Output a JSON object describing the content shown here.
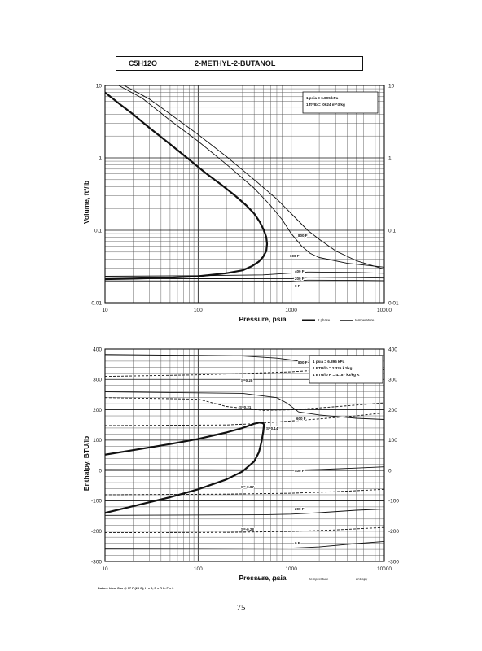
{
  "header": {
    "formula": "C5H12O",
    "compound": "2-METHYL-2-BUTANOL"
  },
  "page_number": "75",
  "colors": {
    "ink": "#111111",
    "grid": "#555555"
  },
  "chart_data": [
    {
      "type": "line",
      "title": "",
      "xlabel": "Pressure,  psia",
      "ylabel": "Volume, ft^3/lb",
      "xscale": "log",
      "yscale": "log",
      "xlim": [
        10,
        10000
      ],
      "ylim": [
        0.01,
        10
      ],
      "xticks": [
        "10",
        "100",
        "1000",
        "10000"
      ],
      "yticks": [
        "0.01",
        "0.1",
        "1",
        "10"
      ],
      "grid": true,
      "notes": [
        "1 psia  =  6.895 kPa",
        "1 ft^3/lb  =  .0624 m^3/kg"
      ],
      "legend": [
        {
          "label": "2 phase",
          "style": "bold"
        },
        {
          "label": "temperature",
          "style": "solid"
        }
      ],
      "series": [
        {
          "name": "2 phase",
          "style": "bold",
          "points": [
            [
              10,
              8
            ],
            [
              15,
              5.3
            ],
            [
              20,
              4.0
            ],
            [
              30,
              2.6
            ],
            [
              50,
              1.55
            ],
            [
              80,
              0.95
            ],
            [
              120,
              0.62
            ],
            [
              180,
              0.42
            ],
            [
              250,
              0.3
            ],
            [
              330,
              0.22
            ],
            [
              400,
              0.17
            ],
            [
              460,
              0.13
            ],
            [
              510,
              0.1
            ],
            [
              540,
              0.08
            ],
            [
              550,
              0.065
            ],
            [
              540,
              0.052
            ],
            [
              500,
              0.043
            ],
            [
              450,
              0.037
            ],
            [
              380,
              0.032
            ],
            [
              300,
              0.028
            ],
            [
              200,
              0.0255
            ],
            [
              100,
              0.0232
            ],
            [
              50,
              0.0222
            ],
            [
              20,
              0.0215
            ],
            [
              10,
              0.0212
            ]
          ]
        },
        {
          "name": "tie",
          "style": "solid",
          "points": [
            [
              200,
              0.0255
            ],
            [
              200,
              0.42
            ]
          ]
        },
        {
          "name": "800 F",
          "style": "solid",
          "points": [
            [
              16,
              10
            ],
            [
              30,
              6.5
            ],
            [
              60,
              3.4
            ],
            [
              100,
              2.1
            ],
            [
              200,
              1.05
            ],
            [
              400,
              0.5
            ],
            [
              700,
              0.27
            ],
            [
              1000,
              0.17
            ],
            [
              1500,
              0.1
            ],
            [
              2000,
              0.075
            ],
            [
              3000,
              0.052
            ],
            [
              5000,
              0.038
            ],
            [
              10000,
              0.029
            ]
          ]
        },
        {
          "name": "600 F",
          "style": "solid",
          "points": [
            [
              14,
              10
            ],
            [
              25,
              6.7
            ],
            [
              50,
              3.3
            ],
            [
              100,
              1.7
            ],
            [
              200,
              0.82
            ],
            [
              400,
              0.38
            ],
            [
              600,
              0.22
            ],
            [
              800,
              0.14
            ],
            [
              1000,
              0.09
            ],
            [
              1300,
              0.06
            ],
            [
              1600,
              0.048
            ],
            [
              2000,
              0.042
            ],
            [
              4000,
              0.035
            ],
            [
              10000,
              0.031
            ]
          ]
        },
        {
          "name": "400 F",
          "style": "solid",
          "points": [
            [
              10,
              0.0232
            ],
            [
              100,
              0.0236
            ],
            [
              500,
              0.0242
            ],
            [
              1500,
              0.0265
            ],
            [
              5000,
              0.0262
            ],
            [
              10000,
              0.0255
            ]
          ]
        },
        {
          "name": "200 F",
          "style": "solid",
          "points": [
            [
              10,
              0.0215
            ],
            [
              1000,
              0.0214
            ],
            [
              1500,
              0.0225
            ],
            [
              5000,
              0.0222
            ],
            [
              10000,
              0.0219
            ]
          ]
        },
        {
          "name": "0 F",
          "style": "solid",
          "points": [
            [
              10,
              0.02
            ],
            [
              1000,
              0.0199
            ],
            [
              1500,
              0.0205
            ],
            [
              5000,
              0.0203
            ],
            [
              10000,
              0.0201
            ]
          ]
        }
      ],
      "annotations": [
        "800 F",
        "600 F",
        "400 F",
        "200 F",
        "0 F"
      ]
    },
    {
      "type": "line",
      "title": "",
      "xlabel": "Pressure,  psia",
      "ylabel": "Enthalpy, BTU/lb",
      "xscale": "log",
      "yscale": "linear",
      "xlim": [
        10,
        10000
      ],
      "ylim": [
        -300,
        400
      ],
      "xticks": [
        "10",
        "100",
        "1000",
        "10000"
      ],
      "yticks": [
        "-300",
        "-200",
        "-100",
        "0",
        "100",
        "200",
        "300",
        "400"
      ],
      "grid": true,
      "notes": [
        "1 psia  =  6.895 kPa",
        "1 BTU/lb  =  2.326 kJ/kg",
        "1 BTU/lb R  =  4.187 kJ/kg K"
      ],
      "footnote": "Datum: Ideal Gas @ 77 F (25 C),  H = 0,  S = R ln P = 0",
      "legend": [
        {
          "label": "2 phase",
          "style": "bold"
        },
        {
          "label": "temperature",
          "style": "solid"
        },
        {
          "label": "entropy",
          "style": "dashed"
        }
      ],
      "series": [
        {
          "name": "2 phase",
          "style": "bold",
          "points": [
            [
              10,
              -140
            ],
            [
              20,
              -118
            ],
            [
              50,
              -88
            ],
            [
              100,
              -62
            ],
            [
              200,
              -30
            ],
            [
              300,
              -3
            ],
            [
              400,
              30
            ],
            [
              450,
              60
            ],
            [
              480,
              95
            ],
            [
              500,
              125
            ],
            [
              510,
              150
            ],
            [
              500,
              156
            ],
            [
              460,
              158
            ],
            [
              400,
              154
            ],
            [
              300,
              140
            ],
            [
              200,
              125
            ],
            [
              100,
              104
            ],
            [
              50,
              87
            ],
            [
              20,
              67
            ],
            [
              10,
              52
            ]
          ]
        },
        {
          "name": "tie",
          "style": "solid",
          "points": [
            [
              200,
              -30
            ],
            [
              200,
              125
            ]
          ]
        },
        {
          "name": "800 F",
          "style": "solid",
          "points": [
            [
              10,
              382
            ],
            [
              300,
              377
            ],
            [
              700,
              370
            ],
            [
              1000,
              364
            ],
            [
              2000,
              350
            ],
            [
              5000,
              338
            ],
            [
              10000,
              332
            ]
          ]
        },
        {
          "name": "600 F",
          "style": "solid",
          "points": [
            [
              10,
              259
            ],
            [
              300,
              254
            ],
            [
              700,
              240
            ],
            [
              900,
              222
            ],
            [
              1200,
              193
            ],
            [
              2000,
              183
            ],
            [
              5000,
              172
            ],
            [
              10000,
              168
            ]
          ]
        },
        {
          "name": "400 F",
          "style": "solid",
          "points": [
            [
              10,
              3
            ],
            [
              500,
              2
            ],
            [
              1000,
              1
            ],
            [
              2000,
              3
            ],
            [
              5000,
              8
            ],
            [
              10000,
              12
            ]
          ]
        },
        {
          "name": "200 F",
          "style": "solid",
          "points": [
            [
              10,
              -148
            ],
            [
              500,
              -146
            ],
            [
              1000,
              -144
            ],
            [
              2000,
              -139
            ],
            [
              5000,
              -131
            ],
            [
              10000,
              -127
            ]
          ]
        },
        {
          "name": "0 F",
          "style": "solid",
          "points": [
            [
              10,
              -258
            ],
            [
              1000,
              -256
            ],
            [
              2000,
              -252
            ],
            [
              5000,
              -241
            ],
            [
              10000,
              -234
            ]
          ]
        },
        {
          "name": "S=0.28",
          "style": "dashed",
          "points": [
            [
              10,
              310
            ],
            [
              100,
              315
            ],
            [
              200,
              318
            ],
            [
              1000,
              325
            ],
            [
              3000,
              334
            ],
            [
              10000,
              348
            ]
          ]
        },
        {
          "name": "S=0.21",
          "style": "dashed",
          "points": [
            [
              10,
              240
            ],
            [
              100,
              235
            ],
            [
              200,
              211
            ],
            [
              500,
              198
            ],
            [
              1000,
              200
            ],
            [
              3000,
              210
            ],
            [
              10000,
              223
            ]
          ]
        },
        {
          "name": "S=0.14",
          "style": "dashed",
          "points": [
            [
              10,
              148
            ],
            [
              200,
              150
            ],
            [
              400,
              154
            ],
            [
              800,
              161
            ],
            [
              2000,
              170
            ],
            [
              5000,
              180
            ],
            [
              10000,
              190
            ]
          ]
        },
        {
          "name": "S=-0.07",
          "style": "dashed",
          "points": [
            [
              10,
              -80
            ],
            [
              200,
              -78
            ],
            [
              1000,
              -75
            ],
            [
              3000,
              -70
            ],
            [
              10000,
              -62
            ]
          ]
        },
        {
          "name": "S=-0.28",
          "style": "dashed",
          "points": [
            [
              10,
              -205
            ],
            [
              200,
              -204
            ],
            [
              1000,
              -201
            ],
            [
              3000,
              -196
            ],
            [
              10000,
              -188
            ]
          ]
        }
      ],
      "annotations": [
        "800 F",
        "600 F",
        "400 F",
        "200 F",
        "0 F",
        "S=0.28",
        "S=0.21",
        "S=0.14",
        "S=-0.07",
        "S=-0.28"
      ]
    }
  ]
}
